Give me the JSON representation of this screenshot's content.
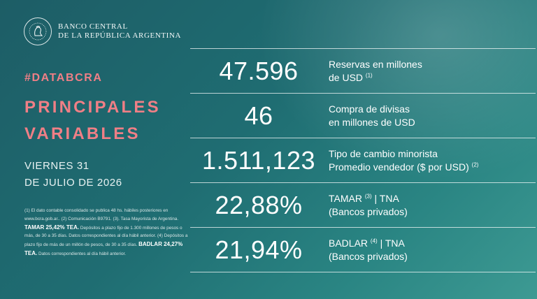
{
  "brand": {
    "name_line1": "BANCO CENTRAL",
    "name_line2": "DE LA REPÚBLICA ARGENTINA",
    "seal_icon": "bcra-seal-icon"
  },
  "tag": "#DATABCRA",
  "title": {
    "line1": "PRINCIPALES",
    "line2": "VARIABLES"
  },
  "date": {
    "line1": "VIERNES 31",
    "line2": "DE JULIO DE 2026"
  },
  "colors": {
    "accent": "#f07f86",
    "background": "#1f6d72"
  },
  "notes": {
    "p1": "(1) El dato contable consolidado se publica 48 hs. hábiles posteriores en www.bcra.gob.ar.. (2) Comunicación B9791. (3). Tasa Mayorista de Argentina.",
    "tamar_bold": "TAMAR 25,42% TEA.",
    "p2": "Depósitos a plazo fijo de 1.300 millones de pesos o más, de 30 a 35 días. Datos correspondientes al día hábil anterior. (4) Depósitos a plazo fijo de más de un millón de pesos, de 30 a 35 días.",
    "badlar_bold": "BADLAR 24,27% TEA.",
    "p3": "Datos correspondientes al día hábil anterior."
  },
  "rows": [
    {
      "value": "47.596",
      "line1": "Reservas en millones",
      "line2": "de USD",
      "ref2": "(1)"
    },
    {
      "value": "46",
      "line1": "Compra de divisas",
      "line2": "en millones de USD",
      "ref2": ""
    },
    {
      "value": "1.511,123",
      "line1": "Tipo de cambio minorista",
      "line2": "Promedio vendedor ($ por USD)",
      "ref2": "(2)"
    },
    {
      "value": "22,88%",
      "line1a": "TAMAR",
      "ref1": "(3)",
      "line1b": "| TNA",
      "line2": "(Bancos privados)"
    },
    {
      "value": "21,94%",
      "line1a": "BADLAR",
      "ref1": "(4)",
      "line1b": "| TNA",
      "line2": "(Bancos privados)"
    }
  ]
}
